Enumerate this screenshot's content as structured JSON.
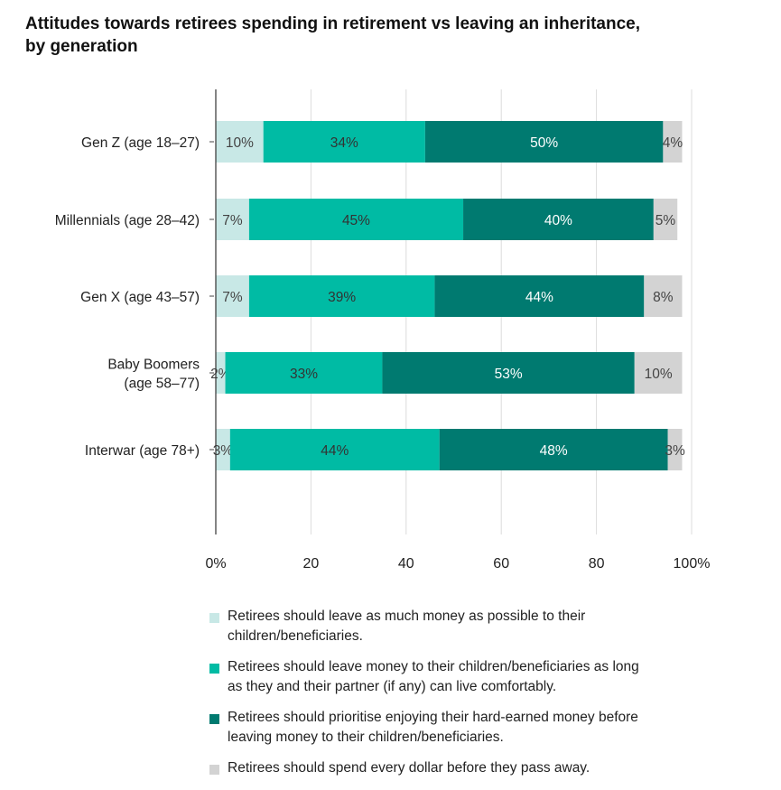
{
  "chart_data": {
    "type": "bar",
    "orientation": "horizontal",
    "stacked": true,
    "title": "Attitudes towards retirees spending in retirement vs leaving an inheritance, by generation",
    "xlabel": "",
    "ylabel": "",
    "xlim": [
      0,
      100
    ],
    "x_ticks": [
      "0%",
      "20",
      "40",
      "60",
      "80",
      "100%"
    ],
    "x_tick_values": [
      0,
      20,
      40,
      60,
      80,
      100
    ],
    "grid": true,
    "legend_position": "bottom",
    "categories": [
      [
        "Gen Z (age 18–27)"
      ],
      [
        "Millennials (age 28–42)"
      ],
      [
        "Gen X (age 43–57)"
      ],
      [
        "Baby Boomers",
        "(age 58–77)"
      ],
      [
        "Interwar (age 78+)"
      ]
    ],
    "series": [
      {
        "name": "Retirees should leave as much money as possible to their children/beneficiaries.",
        "legend_lines": [
          "Retirees should leave as much money as possible to their",
          "children/beneficiaries."
        ],
        "color": "#c8e8e6",
        "label_color": "#444444",
        "values": [
          10,
          7,
          7,
          2,
          3
        ],
        "labels": [
          "10%",
          "7%",
          "7%",
          "2%",
          "3%"
        ]
      },
      {
        "name": "Retirees should leave money to their children/beneficiaries as long as they and their partner (if any) can live comfortably.",
        "legend_lines": [
          "Retirees should leave money to their children/beneficiaries as long",
          "as they and their partner (if any) can live comfortably."
        ],
        "color": "#00bba4",
        "label_color": "#333333",
        "values": [
          34,
          45,
          39,
          33,
          44
        ],
        "labels": [
          "34%",
          "45%",
          "39%",
          "33%",
          "44%"
        ]
      },
      {
        "name": "Retirees should prioritise enjoying their hard-earned money before leaving money to their children/beneficiaries.",
        "legend_lines": [
          "Retirees should prioritise enjoying their hard-earned money before",
          "leaving money to their children/beneficiaries."
        ],
        "color": "#007a70",
        "label_color": "#ffffff",
        "values": [
          50,
          40,
          44,
          53,
          48
        ],
        "labels": [
          "50%",
          "40%",
          "44%",
          "53%",
          "48%"
        ]
      },
      {
        "name": "Retirees should spend every dollar before they pass away.",
        "legend_lines": [
          "Retirees should spend every dollar before they pass away."
        ],
        "color": "#d3d3d3",
        "label_color": "#444444",
        "values": [
          4,
          5,
          8,
          10,
          3
        ],
        "labels": [
          "4%",
          "5%",
          "8%",
          "10%",
          "3%"
        ]
      }
    ]
  }
}
